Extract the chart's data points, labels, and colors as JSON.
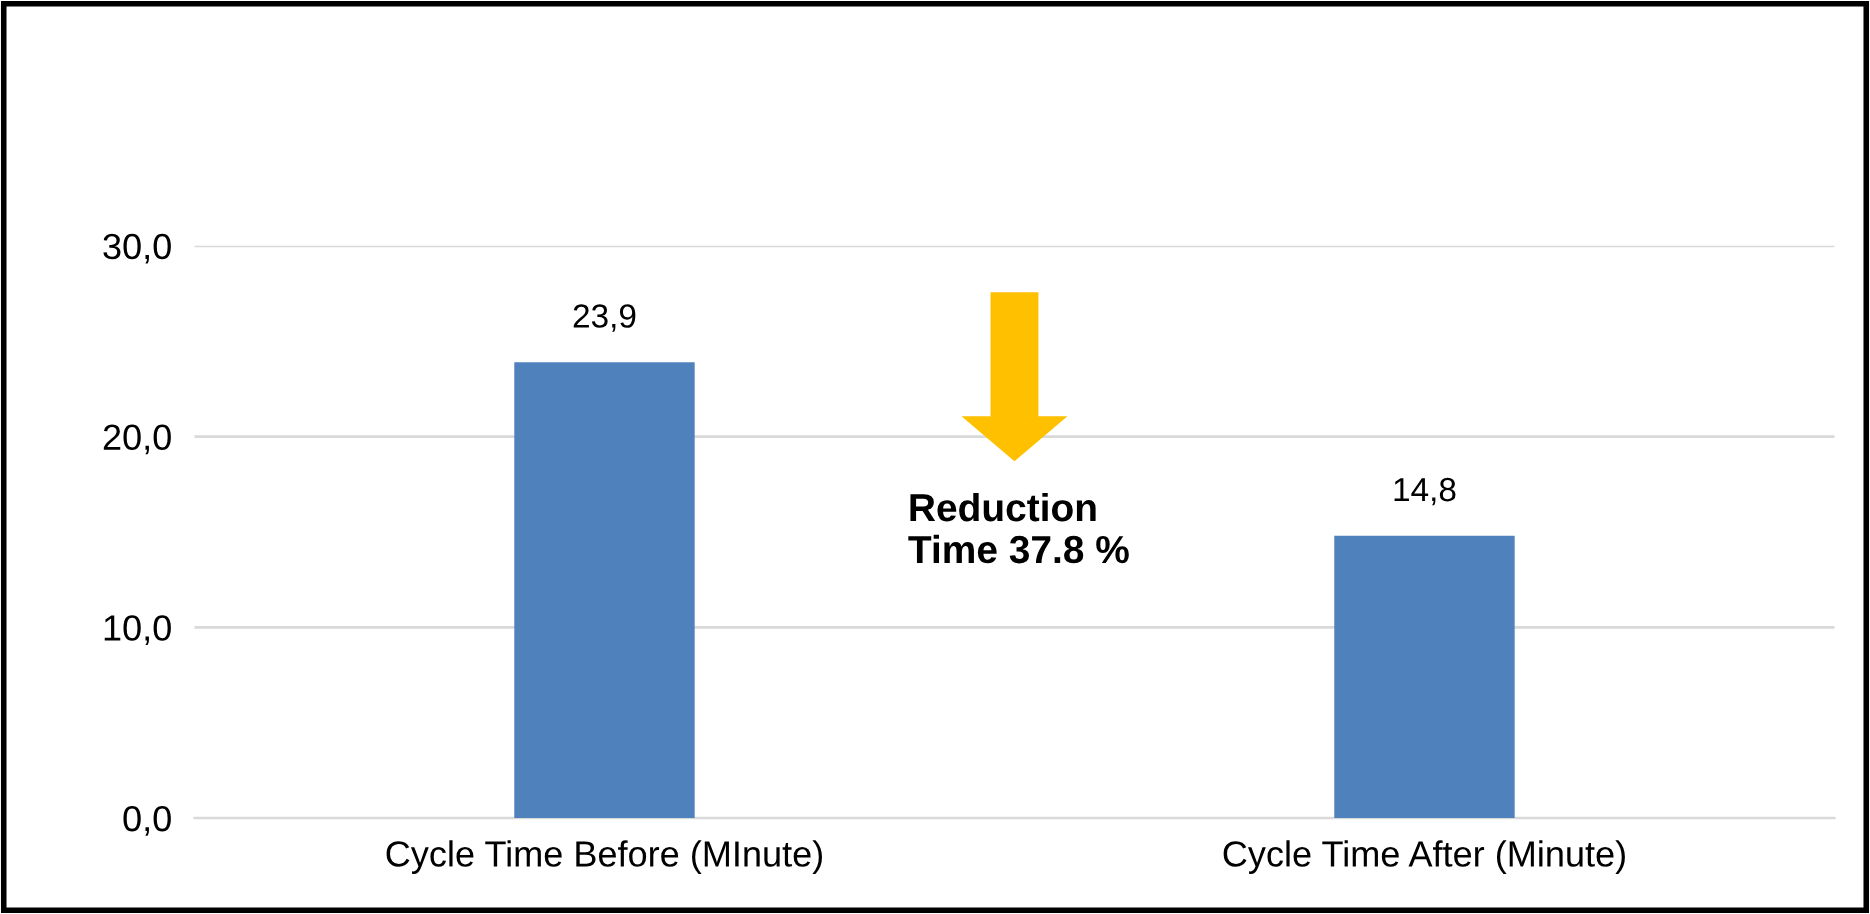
{
  "chart_data": {
    "type": "bar",
    "categories": [
      "Cycle Time Before (MInute)",
      "Cycle Time After (Minute)"
    ],
    "values": [
      23.9,
      14.8
    ],
    "value_labels": [
      "23,9",
      "14,8"
    ],
    "color": "#4f81bd",
    "ylim": [
      0,
      30
    ],
    "yticks": [
      {
        "value": 0,
        "label": "0,0"
      },
      {
        "value": 10,
        "label": "10,0"
      },
      {
        "value": 20,
        "label": "20,0"
      },
      {
        "value": 30,
        "label": "30,0"
      }
    ],
    "grid": "y",
    "legend": false,
    "annotations": [
      "Reduction\nTime 37.8 %"
    ]
  }
}
